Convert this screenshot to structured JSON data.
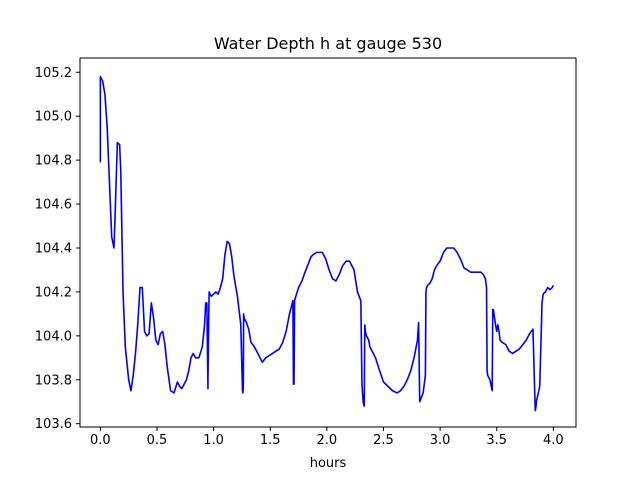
{
  "chart_data": {
    "type": "line",
    "title": "Water Depth h at gauge 530",
    "xlabel": "hours",
    "ylabel": "",
    "xlim": [
      -0.18,
      4.2
    ],
    "ylim": [
      103.585,
      105.265
    ],
    "xticks": [
      0.0,
      0.5,
      1.0,
      1.5,
      2.0,
      2.5,
      3.0,
      3.5,
      4.0
    ],
    "xtick_labels": [
      "0.0",
      "0.5",
      "1.0",
      "1.5",
      "2.0",
      "2.5",
      "3.0",
      "3.5",
      "4.0"
    ],
    "yticks": [
      103.6,
      103.8,
      104.0,
      104.2,
      104.4,
      104.6,
      104.8,
      105.0,
      105.2
    ],
    "ytick_labels": [
      "103.6",
      "103.8",
      "104.0",
      "104.2",
      "104.4",
      "104.6",
      "104.8",
      "105.0",
      "105.2"
    ],
    "grid": false,
    "legend": "none",
    "series": [
      {
        "color": "#0000ff",
        "x": [
          0.0,
          0.0,
          0.02,
          0.04,
          0.06,
          0.08,
          0.1,
          0.12,
          0.13,
          0.15,
          0.17,
          0.18,
          0.2,
          0.22,
          0.25,
          0.27,
          0.29,
          0.31,
          0.33,
          0.35,
          0.37,
          0.39,
          0.41,
          0.43,
          0.45,
          0.47,
          0.49,
          0.51,
          0.53,
          0.55,
          0.57,
          0.59,
          0.62,
          0.65,
          0.68,
          0.7,
          0.72,
          0.74,
          0.76,
          0.78,
          0.8,
          0.82,
          0.84,
          0.87,
          0.9,
          0.92,
          0.93,
          0.94,
          0.95,
          0.95,
          0.96,
          0.98,
          1.0,
          1.02,
          1.04,
          1.06,
          1.08,
          1.1,
          1.12,
          1.14,
          1.16,
          1.18,
          1.21,
          1.24,
          1.255,
          1.258,
          1.262,
          1.265,
          1.27,
          1.29,
          1.31,
          1.33,
          1.36,
          1.39,
          1.41,
          1.43,
          1.46,
          1.49,
          1.52,
          1.55,
          1.58,
          1.61,
          1.64,
          1.67,
          1.7,
          1.705,
          1.71,
          1.715,
          1.72,
          1.75,
          1.78,
          1.8,
          1.83,
          1.86,
          1.88,
          1.91,
          1.93,
          1.96,
          1.99,
          2.02,
          2.05,
          2.08,
          2.11,
          2.14,
          2.17,
          2.2,
          2.24,
          2.27,
          2.3,
          2.31,
          2.32,
          2.33,
          2.335,
          2.34,
          2.35,
          2.37,
          2.38,
          2.4,
          2.43,
          2.46,
          2.5,
          2.54,
          2.58,
          2.62,
          2.65,
          2.68,
          2.71,
          2.74,
          2.77,
          2.8,
          2.81,
          2.82,
          2.85,
          2.87,
          2.875,
          2.88,
          2.89,
          2.91,
          2.93,
          2.95,
          2.97,
          3.0,
          3.03,
          3.06,
          3.09,
          3.12,
          3.15,
          3.18,
          3.21,
          3.24,
          3.27,
          3.3,
          3.33,
          3.36,
          3.38,
          3.4,
          3.41,
          3.415,
          3.42,
          3.44,
          3.46,
          3.465,
          3.47,
          3.49,
          3.5,
          3.51,
          3.52,
          3.53,
          3.55,
          3.58,
          3.61,
          3.64,
          3.67,
          3.7,
          3.73,
          3.76,
          3.79,
          3.82,
          3.84,
          3.845,
          3.85,
          3.88,
          3.9,
          3.905,
          3.91,
          3.93,
          3.95,
          3.97,
          3.99,
          4.0
        ],
        "y": [
          104.79,
          105.18,
          105.16,
          105.1,
          104.95,
          104.7,
          104.45,
          104.4,
          104.55,
          104.88,
          104.87,
          104.75,
          104.2,
          103.95,
          103.8,
          103.75,
          103.82,
          103.92,
          104.05,
          104.22,
          104.22,
          104.02,
          104.0,
          104.01,
          104.15,
          104.08,
          103.98,
          103.96,
          104.01,
          104.02,
          103.96,
          103.86,
          103.75,
          103.74,
          103.79,
          103.77,
          103.76,
          103.78,
          103.8,
          103.84,
          103.9,
          103.92,
          103.9,
          103.9,
          103.95,
          104.05,
          104.15,
          104.15,
          103.76,
          103.8,
          104.2,
          104.18,
          104.19,
          104.2,
          104.19,
          104.22,
          104.26,
          104.37,
          104.43,
          104.42,
          104.36,
          104.27,
          104.18,
          104.05,
          103.75,
          103.74,
          103.76,
          104.1,
          104.08,
          104.06,
          104.03,
          103.97,
          103.95,
          103.92,
          103.9,
          103.88,
          103.9,
          103.91,
          103.92,
          103.93,
          103.94,
          103.97,
          104.02,
          104.1,
          104.16,
          103.78,
          103.78,
          104.16,
          104.17,
          104.22,
          104.25,
          104.28,
          104.32,
          104.36,
          104.37,
          104.38,
          104.38,
          104.38,
          104.35,
          104.3,
          104.26,
          104.25,
          104.28,
          104.32,
          104.34,
          104.34,
          104.3,
          104.2,
          104.16,
          103.78,
          103.7,
          103.68,
          104.05,
          104.02,
          104.0,
          103.98,
          103.95,
          103.93,
          103.9,
          103.85,
          103.79,
          103.77,
          103.75,
          103.74,
          103.75,
          103.77,
          103.8,
          103.84,
          103.9,
          103.98,
          104.06,
          103.7,
          103.74,
          103.82,
          104.2,
          104.22,
          104.23,
          104.24,
          104.26,
          104.3,
          104.32,
          104.34,
          104.38,
          104.4,
          104.4,
          104.4,
          104.38,
          104.35,
          104.31,
          104.3,
          104.29,
          104.29,
          104.29,
          104.29,
          104.28,
          104.26,
          104.22,
          103.84,
          103.82,
          103.8,
          103.75,
          104.12,
          104.12,
          104.05,
          104.02,
          104.05,
          104.02,
          103.98,
          103.97,
          103.96,
          103.93,
          103.92,
          103.93,
          103.94,
          103.96,
          103.98,
          104.01,
          104.03,
          103.66,
          103.67,
          103.7,
          103.77,
          104.15,
          104.17,
          104.19,
          104.2,
          104.22,
          104.21,
          104.22,
          104.23
        ]
      }
    ]
  }
}
